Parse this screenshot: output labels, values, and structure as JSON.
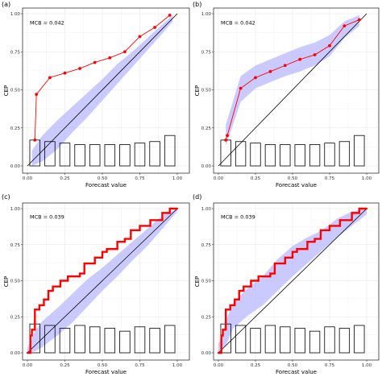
{
  "chart_data": [
    {
      "type": "line",
      "panel_label": "(a)",
      "xlabel": "Forecast value",
      "ylabel": "CEP",
      "annotation": "MCB = 0.042",
      "xlim": [
        0,
        1
      ],
      "ylim": [
        0,
        1
      ],
      "xticks": [
        "0.00",
        "0.25",
        "0.50",
        "0.75",
        "1.00"
      ],
      "yticks": [
        "0.00",
        "0.25",
        "0.50",
        "0.75",
        "1.00"
      ],
      "grid": true,
      "series": [
        {
          "kind": "calibration",
          "color": "#ff0000",
          "x": [
            0.05,
            0.06,
            0.15,
            0.25,
            0.35,
            0.45,
            0.55,
            0.65,
            0.75,
            0.85,
            0.95
          ],
          "y": [
            0.17,
            0.47,
            0.58,
            0.61,
            0.64,
            0.68,
            0.71,
            0.75,
            0.85,
            0.91,
            0.99
          ]
        },
        {
          "kind": "consistency-band",
          "color": "#b3b3ff",
          "x": [
            0.03,
            0.1,
            0.2,
            0.3,
            0.4,
            0.5,
            0.6,
            0.7,
            0.8,
            0.9,
            0.97
          ],
          "lower": [
            0.0,
            0.03,
            0.11,
            0.22,
            0.32,
            0.43,
            0.54,
            0.65,
            0.76,
            0.87,
            0.95
          ],
          "upper": [
            0.1,
            0.2,
            0.3,
            0.39,
            0.48,
            0.57,
            0.67,
            0.75,
            0.84,
            0.93,
            0.99
          ]
        }
      ],
      "histogram": {
        "bins": [
          0.05,
          0.15,
          0.25,
          0.35,
          0.45,
          0.55,
          0.65,
          0.75,
          0.85,
          0.95
        ],
        "heights": [
          0.17,
          0.16,
          0.15,
          0.14,
          0.14,
          0.14,
          0.14,
          0.15,
          0.16,
          0.2
        ]
      }
    },
    {
      "type": "line",
      "panel_label": "(b)",
      "xlabel": "Forecast value",
      "ylabel": "CEP",
      "annotation": "MCB = 0.042",
      "xlim": [
        0,
        1
      ],
      "ylim": [
        0,
        1
      ],
      "xticks": [
        "0.00",
        "0.25",
        "0.50",
        "0.75",
        "1.00"
      ],
      "yticks": [
        "0.00",
        "0.25",
        "0.50",
        "0.75",
        "1.00"
      ],
      "grid": true,
      "series": [
        {
          "kind": "calibration",
          "color": "#ff0000",
          "x": [
            0.05,
            0.06,
            0.15,
            0.25,
            0.35,
            0.45,
            0.55,
            0.65,
            0.75,
            0.85,
            0.95
          ],
          "y": [
            0.17,
            0.2,
            0.51,
            0.58,
            0.62,
            0.66,
            0.7,
            0.73,
            0.79,
            0.92,
            0.96
          ]
        },
        {
          "kind": "consistency-band",
          "color": "#b3b3ff",
          "x": [
            0.05,
            0.15,
            0.25,
            0.35,
            0.45,
            0.55,
            0.65,
            0.75,
            0.85,
            0.95
          ],
          "lower": [
            0.13,
            0.42,
            0.51,
            0.55,
            0.59,
            0.62,
            0.66,
            0.72,
            0.84,
            0.92
          ],
          "upper": [
            0.27,
            0.59,
            0.66,
            0.7,
            0.74,
            0.78,
            0.81,
            0.86,
            0.95,
            0.99
          ]
        }
      ],
      "histogram": {
        "bins": [
          0.05,
          0.15,
          0.25,
          0.35,
          0.45,
          0.55,
          0.65,
          0.75,
          0.85,
          0.95
        ],
        "heights": [
          0.17,
          0.16,
          0.15,
          0.14,
          0.14,
          0.14,
          0.14,
          0.15,
          0.16,
          0.2
        ]
      }
    },
    {
      "type": "line",
      "panel_label": "(c)",
      "xlabel": "Forecast value",
      "ylabel": "CEP",
      "annotation": "MCB = 0.039",
      "xlim": [
        0,
        1
      ],
      "ylim": [
        0,
        1
      ],
      "xticks": [
        "0.00",
        "0.25",
        "0.50",
        "0.75",
        "1.00"
      ],
      "yticks": [
        "0.00",
        "0.25",
        "0.50",
        "0.75",
        "1.00"
      ],
      "grid": true,
      "series": [
        {
          "kind": "calibration-step",
          "color": "#ff0000",
          "x": [
            0.0,
            0.02,
            0.03,
            0.05,
            0.08,
            0.11,
            0.14,
            0.17,
            0.22,
            0.27,
            0.35,
            0.38,
            0.45,
            0.5,
            0.53,
            0.6,
            0.65,
            0.69,
            0.75,
            0.82,
            0.9,
            0.95,
            1.0
          ],
          "y": [
            0.0,
            0.12,
            0.16,
            0.3,
            0.33,
            0.37,
            0.43,
            0.46,
            0.5,
            0.53,
            0.55,
            0.62,
            0.66,
            0.7,
            0.72,
            0.77,
            0.79,
            0.85,
            0.88,
            0.92,
            0.97,
            1.0,
            1.0
          ]
        },
        {
          "kind": "consistency-band",
          "color": "#b3b3ff",
          "x": [
            0.0,
            0.05,
            0.1,
            0.2,
            0.3,
            0.4,
            0.5,
            0.6,
            0.7,
            0.8,
            0.9,
            1.0
          ],
          "lower": [
            0.0,
            0.01,
            0.04,
            0.12,
            0.21,
            0.32,
            0.43,
            0.53,
            0.64,
            0.74,
            0.86,
            0.98
          ],
          "upper": [
            0.03,
            0.15,
            0.22,
            0.31,
            0.41,
            0.51,
            0.59,
            0.68,
            0.77,
            0.86,
            0.95,
            1.0
          ]
        }
      ],
      "histogram": {
        "bins": [
          0.05,
          0.15,
          0.25,
          0.35,
          0.45,
          0.55,
          0.65,
          0.75,
          0.85,
          0.95
        ],
        "heights": [
          0.2,
          0.19,
          0.17,
          0.19,
          0.18,
          0.17,
          0.15,
          0.18,
          0.17,
          0.19
        ]
      }
    },
    {
      "type": "line",
      "panel_label": "(d)",
      "xlabel": "Forecast value",
      "ylabel": "CEP",
      "annotation": "MCB = 0.039",
      "xlim": [
        0,
        1
      ],
      "ylim": [
        0,
        1
      ],
      "xticks": [
        "0.00",
        "0.25",
        "0.50",
        "0.75",
        "1.00"
      ],
      "yticks": [
        "0.00",
        "0.25",
        "0.50",
        "0.75",
        "1.00"
      ],
      "grid": true,
      "series": [
        {
          "kind": "calibration-step",
          "color": "#ff0000",
          "x": [
            0.0,
            0.02,
            0.03,
            0.05,
            0.08,
            0.11,
            0.14,
            0.17,
            0.22,
            0.27,
            0.35,
            0.38,
            0.45,
            0.5,
            0.53,
            0.6,
            0.65,
            0.69,
            0.75,
            0.82,
            0.9,
            0.95,
            1.0
          ],
          "y": [
            0.0,
            0.12,
            0.16,
            0.3,
            0.33,
            0.37,
            0.43,
            0.46,
            0.5,
            0.53,
            0.55,
            0.62,
            0.66,
            0.7,
            0.72,
            0.77,
            0.79,
            0.85,
            0.88,
            0.92,
            0.97,
            1.0,
            1.0
          ]
        },
        {
          "kind": "consistency-band",
          "color": "#b3b3ff",
          "x": [
            0.0,
            0.05,
            0.1,
            0.2,
            0.3,
            0.4,
            0.5,
            0.6,
            0.7,
            0.8,
            0.9,
            1.0
          ],
          "lower": [
            0.0,
            0.05,
            0.17,
            0.26,
            0.33,
            0.43,
            0.53,
            0.62,
            0.71,
            0.8,
            0.88,
            0.96
          ],
          "upper": [
            0.06,
            0.22,
            0.35,
            0.45,
            0.53,
            0.65,
            0.74,
            0.8,
            0.85,
            0.93,
            0.98,
            1.0
          ]
        }
      ],
      "histogram": {
        "bins": [
          0.05,
          0.15,
          0.25,
          0.35,
          0.45,
          0.55,
          0.65,
          0.75,
          0.85,
          0.95
        ],
        "heights": [
          0.2,
          0.19,
          0.17,
          0.19,
          0.18,
          0.17,
          0.15,
          0.18,
          0.17,
          0.19
        ]
      }
    }
  ]
}
